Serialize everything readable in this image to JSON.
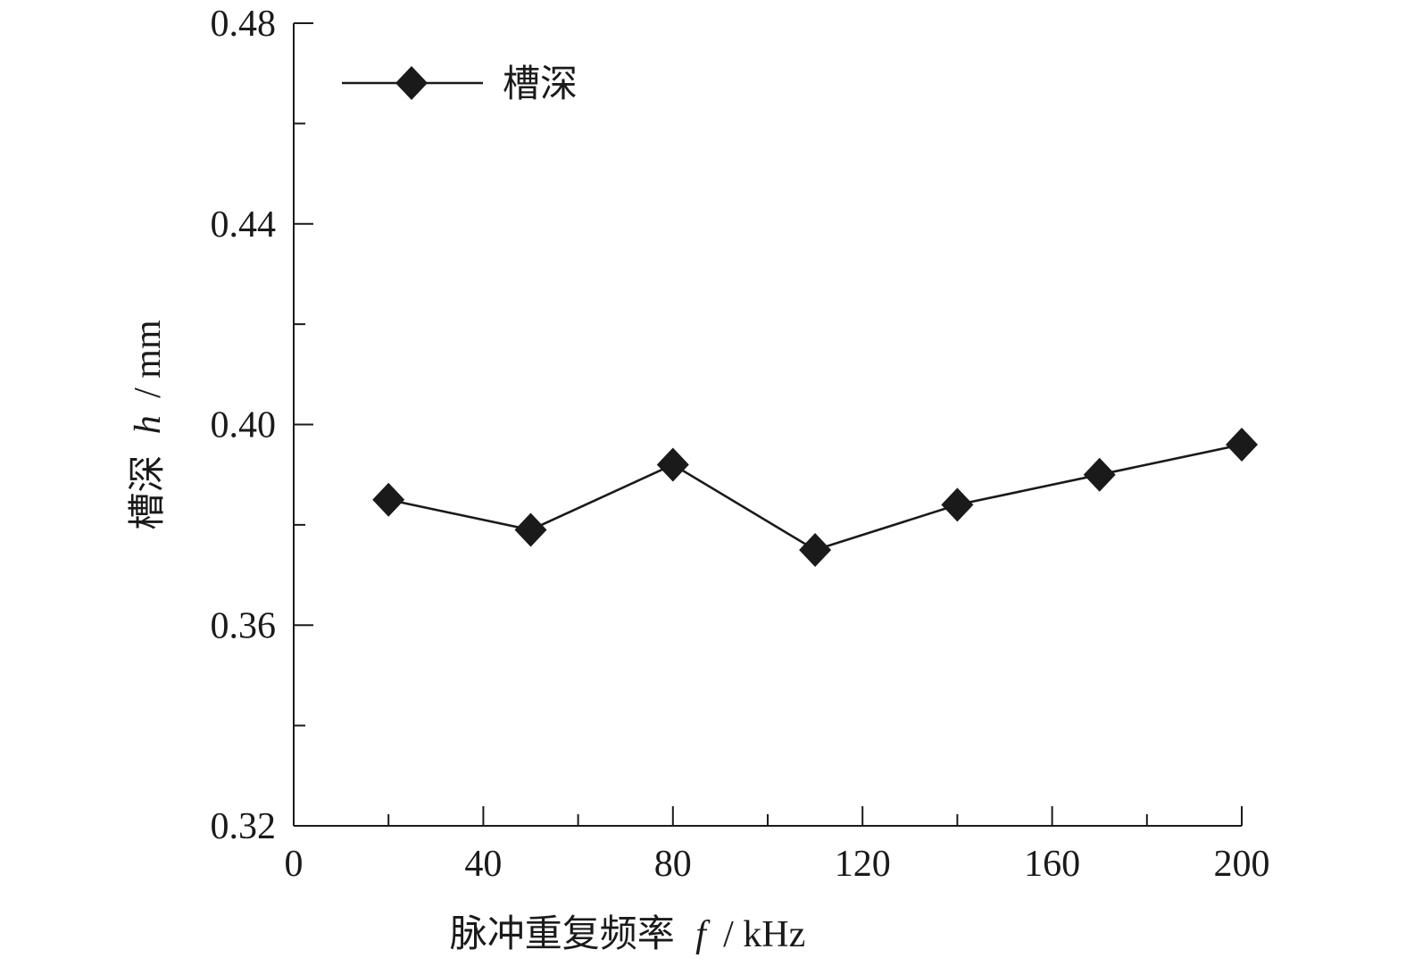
{
  "chart_data": {
    "type": "line",
    "xlabel_main": "脉冲重复频率",
    "xlabel_var": "f",
    "xlabel_unit": "/ kHz",
    "ylabel_main": "槽深",
    "ylabel_var": "h",
    "ylabel_unit": "/ mm",
    "xlim": [
      0,
      200
    ],
    "ylim": [
      0.32,
      0.48
    ],
    "x_ticks": [
      0,
      40,
      80,
      120,
      160,
      200
    ],
    "x_tick_labels": [
      "0",
      "40",
      "80",
      "120",
      "160",
      "200"
    ],
    "x_minor_ticks": [
      20,
      60,
      100,
      140,
      180
    ],
    "y_ticks": [
      0.32,
      0.36,
      0.4,
      0.44,
      0.48
    ],
    "y_tick_labels": [
      "0.32",
      "0.36",
      "0.40",
      "0.44",
      "0.48"
    ],
    "y_minor_ticks": [
      0.34,
      0.38,
      0.42,
      0.46
    ],
    "grid": false,
    "legend_position": "top-left",
    "series": [
      {
        "name": "槽深",
        "marker": "diamond",
        "color": "#1a1a1a",
        "x": [
          20,
          50,
          80,
          110,
          140,
          170,
          200
        ],
        "y": [
          0.385,
          0.379,
          0.392,
          0.375,
          0.384,
          0.39,
          0.396
        ]
      }
    ]
  }
}
